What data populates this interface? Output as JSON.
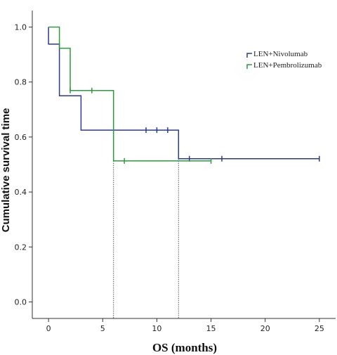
{
  "chart_data": {
    "type": "line",
    "subtype": "kaplan-meier step",
    "xlabel": "OS (months)",
    "ylabel": "Cumulative survival time",
    "xlim": [
      -1.5,
      26.5
    ],
    "ylim": [
      -0.06,
      1.06
    ],
    "x_ticks": [
      0,
      5,
      10,
      15,
      20,
      25
    ],
    "x_tick_labels": [
      "0",
      "5",
      "10",
      "15",
      "20",
      "25"
    ],
    "y_ticks": [
      0.0,
      0.2,
      0.4,
      0.6,
      0.8,
      1.0
    ],
    "y_tick_labels": [
      "0.0",
      "0.2",
      "0.4",
      "0.6",
      "0.8",
      "1.0"
    ],
    "grid": false,
    "legend_position": "top-right",
    "series": [
      {
        "name": "LEN+Nivolumab",
        "color": "#2a3b8f",
        "steps": [
          [
            0,
            1.0
          ],
          [
            0,
            0.938
          ],
          [
            1,
            0.938
          ],
          [
            1,
            0.75
          ],
          [
            3,
            0.75
          ],
          [
            3,
            0.625
          ],
          [
            12,
            0.625
          ],
          [
            12,
            0.521
          ],
          [
            25,
            0.521
          ]
        ],
        "censored": [
          [
            9,
            0.625
          ],
          [
            10,
            0.625
          ],
          [
            11,
            0.625
          ],
          [
            13,
            0.521
          ],
          [
            16,
            0.521
          ],
          [
            25,
            0.521
          ]
        ]
      },
      {
        "name": "LEN+Pembrolizumab",
        "color": "#2e9a3e",
        "steps": [
          [
            0,
            1.0
          ],
          [
            1,
            1.0
          ],
          [
            1,
            0.923
          ],
          [
            2,
            0.923
          ],
          [
            2,
            0.769
          ],
          [
            6,
            0.769
          ],
          [
            6,
            0.513
          ],
          [
            15,
            0.513
          ]
        ],
        "censored": [
          [
            2,
            0.769
          ],
          [
            4,
            0.769
          ],
          [
            7,
            0.513
          ],
          [
            15,
            0.513
          ]
        ]
      }
    ],
    "median_markers": [
      {
        "x": 6,
        "y": 0.513
      },
      {
        "x": 12,
        "y": 0.521
      }
    ]
  }
}
